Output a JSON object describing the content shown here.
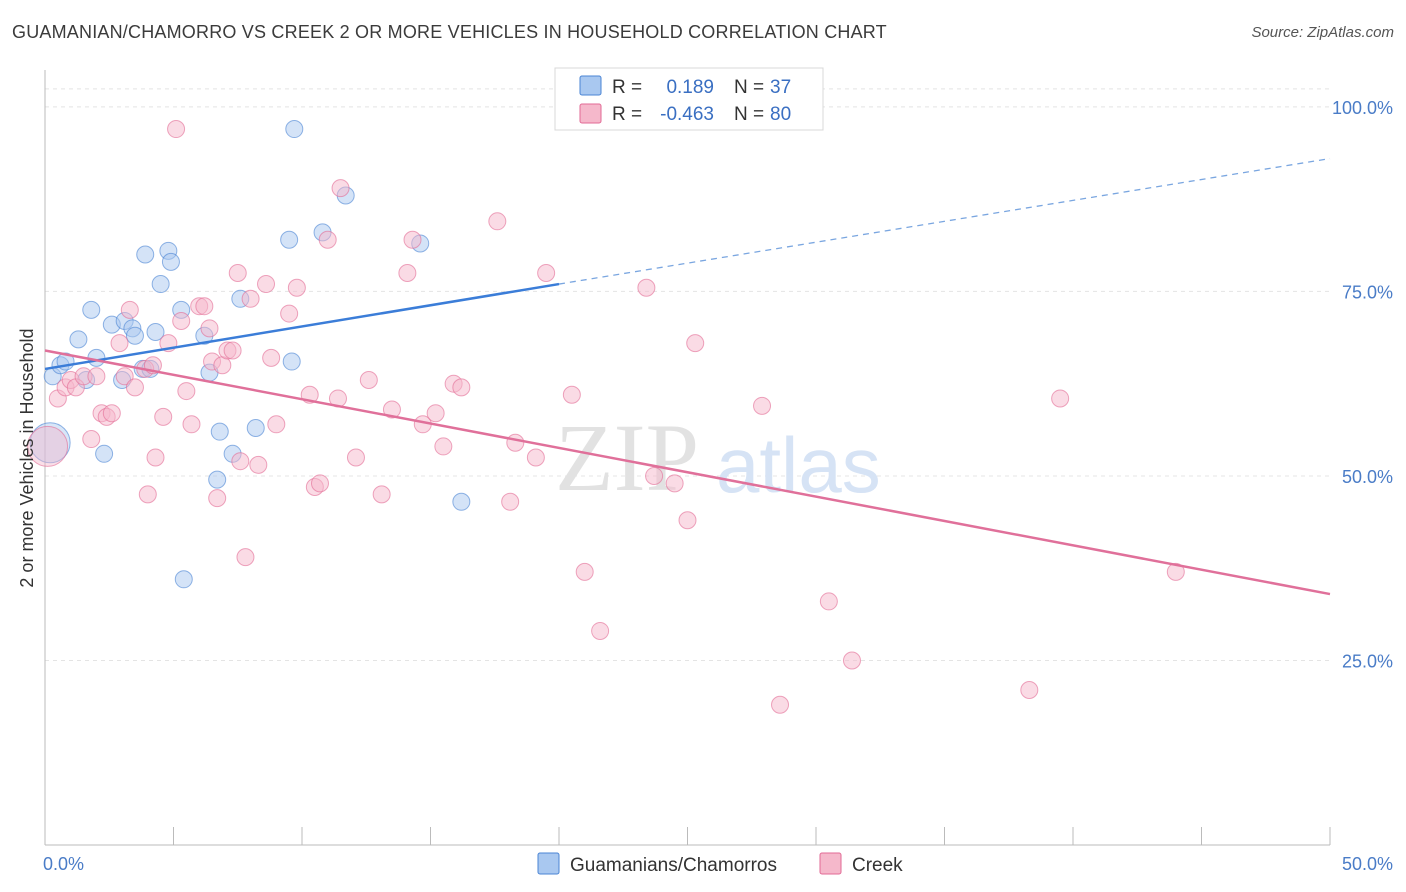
{
  "header": {
    "title": "GUAMANIAN/CHAMORRO VS CREEK 2 OR MORE VEHICLES IN HOUSEHOLD CORRELATION CHART",
    "source": "Source: ZipAtlas.com"
  },
  "watermark": {
    "zip": "ZIP",
    "atlas": "atlas"
  },
  "legend": {
    "r_label": "R =",
    "n_label": "N =",
    "rows": [
      {
        "series": "Guamanians/Chamorros",
        "r": "0.189",
        "n": "37",
        "color": "#a9c8f0"
      },
      {
        "series": "Creek",
        "r": "-0.463",
        "n": "80",
        "color": "#f5b8cb"
      }
    ]
  },
  "chart_data": {
    "type": "scatter",
    "title": "GUAMANIAN/CHAMORRO VS CREEK 2 OR MORE VEHICLES IN HOUSEHOLD CORRELATION CHART",
    "xlabel": "",
    "ylabel": "2 or more Vehicles in Household",
    "xlim": [
      0,
      50
    ],
    "ylim": [
      0,
      105
    ],
    "x_tick_labels": [
      "0.0%",
      "50.0%"
    ],
    "y_ticks": [
      25,
      50,
      75,
      100
    ],
    "y_tick_labels": [
      "25.0%",
      "50.0%",
      "75.0%",
      "100.0%"
    ],
    "grid": true,
    "legend_position": "bottom",
    "series": [
      {
        "name": "Guamanians/Chamorros",
        "color": "#4a84d4",
        "fill": "#a9c8f0",
        "points": [
          [
            0.2,
            54.5
          ],
          [
            0.3,
            63.5
          ],
          [
            0.6,
            65.0
          ],
          [
            0.8,
            65.5
          ],
          [
            1.3,
            68.5
          ],
          [
            1.6,
            63.0
          ],
          [
            1.8,
            72.5
          ],
          [
            2.0,
            66.0
          ],
          [
            2.3,
            53.0
          ],
          [
            2.6,
            70.5
          ],
          [
            3.0,
            63.0
          ],
          [
            3.1,
            71.0
          ],
          [
            3.4,
            70.0
          ],
          [
            3.5,
            69.0
          ],
          [
            3.8,
            64.5
          ],
          [
            3.9,
            80.0
          ],
          [
            4.3,
            69.5
          ],
          [
            4.5,
            76.0
          ],
          [
            4.8,
            80.5
          ],
          [
            4.9,
            79.0
          ],
          [
            5.3,
            72.5
          ],
          [
            5.4,
            36.0
          ],
          [
            6.2,
            69.0
          ],
          [
            6.4,
            64.0
          ],
          [
            6.7,
            49.5
          ],
          [
            6.8,
            56.0
          ],
          [
            7.3,
            53.0
          ],
          [
            7.6,
            74.0
          ],
          [
            8.2,
            56.5
          ],
          [
            9.5,
            82.0
          ],
          [
            9.6,
            65.5
          ],
          [
            9.7,
            97.0
          ],
          [
            10.8,
            83.0
          ],
          [
            11.7,
            88.0
          ],
          [
            14.6,
            81.5
          ],
          [
            16.2,
            46.5
          ],
          [
            4.1,
            64.5
          ]
        ],
        "trend": {
          "x0": 0,
          "y0": 64.5,
          "x1": 20,
          "y1": 76.0,
          "dash_to_x": 50,
          "dash_to_y": 93.0
        }
      },
      {
        "name": "Creek",
        "color": "#e26a95",
        "fill": "#f5b8cb",
        "points": [
          [
            0.1,
            54.0
          ],
          [
            0.5,
            60.5
          ],
          [
            0.8,
            62.0
          ],
          [
            1.0,
            63.0
          ],
          [
            1.2,
            62.0
          ],
          [
            1.5,
            63.5
          ],
          [
            1.8,
            55.0
          ],
          [
            2.0,
            63.5
          ],
          [
            2.2,
            58.5
          ],
          [
            2.4,
            58.0
          ],
          [
            2.6,
            58.5
          ],
          [
            2.9,
            68.0
          ],
          [
            3.1,
            63.5
          ],
          [
            3.3,
            72.5
          ],
          [
            3.5,
            62.0
          ],
          [
            3.9,
            64.5
          ],
          [
            4.0,
            47.5
          ],
          [
            4.2,
            65.0
          ],
          [
            4.3,
            52.5
          ],
          [
            4.6,
            58.0
          ],
          [
            4.8,
            68.0
          ],
          [
            5.1,
            97.0
          ],
          [
            5.3,
            71.0
          ],
          [
            5.5,
            61.5
          ],
          [
            5.7,
            57.0
          ],
          [
            6.0,
            73.0
          ],
          [
            6.2,
            73.0
          ],
          [
            6.4,
            70.0
          ],
          [
            6.5,
            65.5
          ],
          [
            6.7,
            47.0
          ],
          [
            6.9,
            65.0
          ],
          [
            7.1,
            67.0
          ],
          [
            7.3,
            67.0
          ],
          [
            7.5,
            77.5
          ],
          [
            7.6,
            52.0
          ],
          [
            8.0,
            74.0
          ],
          [
            8.3,
            51.5
          ],
          [
            8.6,
            76.0
          ],
          [
            8.8,
            66.0
          ],
          [
            9.0,
            57.0
          ],
          [
            9.5,
            72.0
          ],
          [
            9.8,
            75.5
          ],
          [
            10.3,
            61.0
          ],
          [
            10.5,
            48.5
          ],
          [
            10.7,
            49.0
          ],
          [
            11.0,
            82.0
          ],
          [
            11.4,
            60.5
          ],
          [
            11.5,
            89.0
          ],
          [
            12.1,
            52.5
          ],
          [
            12.6,
            63.0
          ],
          [
            13.1,
            47.5
          ],
          [
            13.5,
            59.0
          ],
          [
            14.1,
            77.5
          ],
          [
            14.3,
            82.0
          ],
          [
            14.7,
            57.0
          ],
          [
            15.2,
            58.5
          ],
          [
            15.5,
            54.0
          ],
          [
            15.9,
            62.5
          ],
          [
            16.2,
            62.0
          ],
          [
            17.6,
            84.5
          ],
          [
            18.1,
            46.5
          ],
          [
            18.3,
            54.5
          ],
          [
            19.1,
            52.5
          ],
          [
            19.5,
            77.5
          ],
          [
            20.5,
            61.0
          ],
          [
            21.0,
            37.0
          ],
          [
            21.6,
            29.0
          ],
          [
            23.4,
            75.5
          ],
          [
            23.7,
            50.0
          ],
          [
            24.5,
            49.0
          ],
          [
            25.0,
            44.0
          ],
          [
            25.3,
            68.0
          ],
          [
            27.9,
            59.5
          ],
          [
            28.6,
            19.0
          ],
          [
            30.5,
            33.0
          ],
          [
            31.4,
            25.0
          ],
          [
            38.3,
            21.0
          ],
          [
            39.5,
            60.5
          ],
          [
            44.0,
            37.0
          ],
          [
            7.8,
            39.0
          ]
        ],
        "trend": {
          "x0": 0,
          "y0": 67.0,
          "x1": 50,
          "y1": 34.0
        }
      }
    ]
  }
}
